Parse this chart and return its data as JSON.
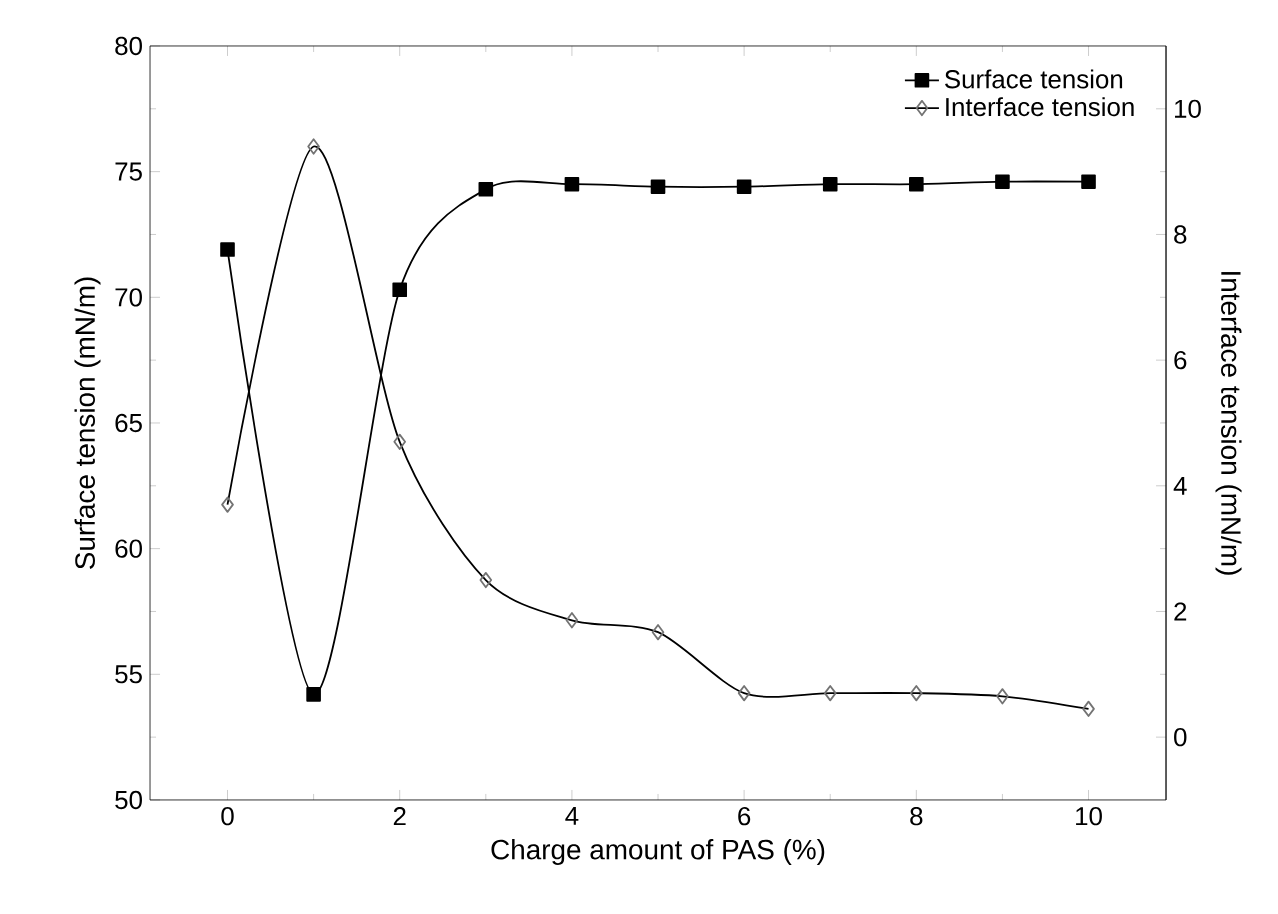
{
  "chart_data": {
    "type": "line",
    "xlabel": "Charge amount of PAS (%)",
    "ylabel": "Surface tension (mN/m)",
    "y2label": "Interface tension (mN/m)",
    "x": [
      0,
      1,
      2,
      3,
      4,
      5,
      6,
      7,
      8,
      9,
      10
    ],
    "series": [
      {
        "name": "Surface tension",
        "color": "#000000",
        "marker": "square",
        "values": [
          71.9,
          54.2,
          70.3,
          74.3,
          74.5,
          74.4,
          74.4,
          74.5,
          74.5,
          74.6,
          74.6
        ]
      },
      {
        "name": "Interface tension",
        "color": "#000000",
        "marker": "diamond",
        "axis": "y2",
        "values": [
          3.7,
          9.4,
          4.7,
          2.5,
          1.86,
          1.67,
          0.7,
          0.7,
          0.7,
          0.65,
          0.45
        ]
      }
    ],
    "xlim": [
      -0.9,
      10.9
    ],
    "xticks": [
      0,
      2,
      4,
      6,
      8,
      10
    ],
    "ylim": [
      50,
      80
    ],
    "yticks": [
      50,
      55,
      60,
      65,
      70,
      75,
      80
    ],
    "y2lim": [
      -1,
      11
    ],
    "y2ticks": [
      0,
      2,
      4,
      6,
      8,
      10
    ],
    "legend": "top right",
    "grid": false,
    "line_style": "solid"
  }
}
